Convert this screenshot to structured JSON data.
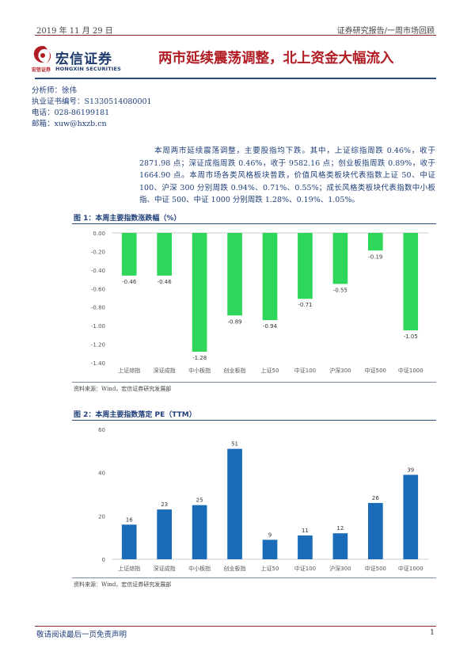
{
  "header": {
    "date": "2019 年 11 月 29 日",
    "category": "证券研究报告/一周市场回顾"
  },
  "logo": {
    "name_cn": "宏信证券",
    "sub_cn": "宏信证券",
    "sub_en": "HONGXIN SECURITIES",
    "color": "#b01c23"
  },
  "title": "两市延续震荡调整，北上资金大幅流入",
  "analyst": {
    "name": "分析师：徐伟",
    "license": "执业证书编号：S1330514080001",
    "phone": "电话：028-86199181",
    "email": "邮箱：xuw@hxzb.cn"
  },
  "body": "本周两市延续震荡调整，主要股指均下跌。其中，上证综指周跌 0.46%，收于 2871.98 点；深证成指周跌 0.46%，收于 9582.16 点；创业板指周跌 0.89%，收于 1664.90 点。本周市场各类风格板块普跌，价值风格类板块代表指数上证 50、中证 100、沪深 300 分别周跌 0.94%、0.71%、0.55%；成长风格类板块代表指数中小板指、中证 500、中证 1000 分别周跌 1.28%、0.19%、1.05%。",
  "figures": [
    {
      "title": "图 1：本周主要指数涨跌幅（%）",
      "source": "资料来源：Wind，宏信证券研究发展部"
    },
    {
      "title": "图 2：本周主要指数落定 PE（TTM）",
      "source": "资料来源：Wind，宏信证券研究发展部"
    }
  ],
  "chart_data": [
    {
      "type": "bar",
      "categories": [
        "上证综指",
        "深证成指",
        "中小板指",
        "创业板指",
        "上证50",
        "中证100",
        "沪深300",
        "中证500",
        "中证1000"
      ],
      "values": [
        -0.46,
        -0.46,
        -1.28,
        -0.89,
        -0.94,
        -0.71,
        -0.55,
        -0.19,
        -1.05
      ],
      "data_labels": [
        "-0.46",
        "-0.46",
        "-1.28",
        "-0.89",
        "-0.94",
        "-0.71",
        "-0.55",
        "-0.19",
        "-1.05"
      ],
      "yticks": [
        "0.00",
        "-0.20",
        "-0.40",
        "-0.60",
        "-0.80",
        "-1.00",
        "-1.20",
        "-1.40"
      ],
      "ylim": [
        -1.4,
        0
      ],
      "color": "#2ed65a",
      "grid": false
    },
    {
      "type": "bar",
      "categories": [
        "上证综指",
        "深证成指",
        "中小板指",
        "创业板指",
        "上证50",
        "中证100",
        "沪深300",
        "中证500",
        "中证1000"
      ],
      "values": [
        16,
        23,
        25,
        51,
        9,
        11,
        12,
        26,
        39
      ],
      "data_labels": [
        "16",
        "23",
        "25",
        "51",
        "9",
        "11",
        "12",
        "26",
        "39"
      ],
      "yticks": [
        "0",
        "20",
        "40",
        "60"
      ],
      "ylim": [
        0,
        60
      ],
      "color": "#1a6bb8",
      "grid": false
    }
  ],
  "footer": {
    "disclaimer": "敬请阅读最后一页免责声明",
    "page": "1"
  }
}
